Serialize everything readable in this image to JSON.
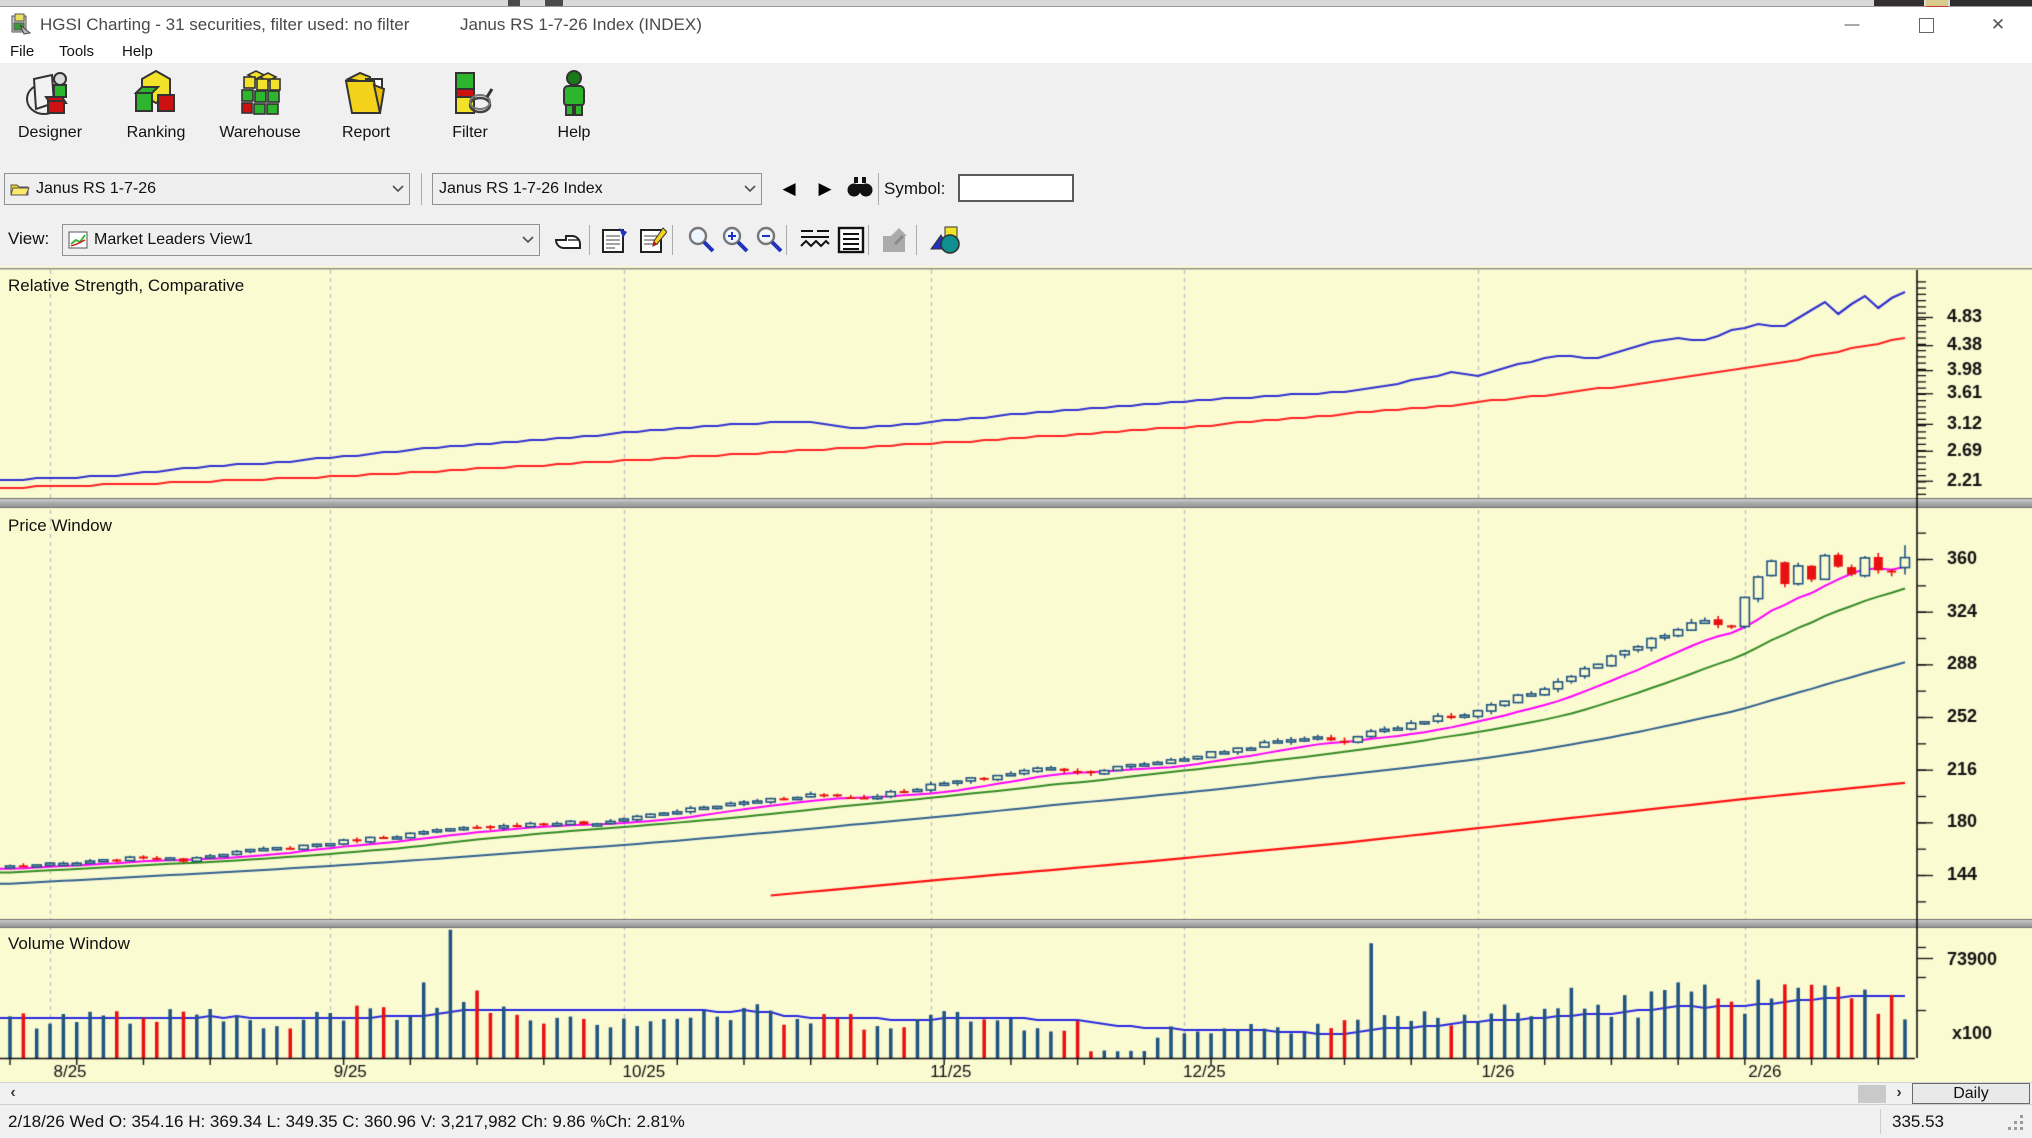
{
  "window": {
    "app_title": "HGSI Charting - 31 securities, filter used: no filter",
    "doc_title": "Janus RS 1-7-26 Index (INDEX)"
  },
  "menu": {
    "file": "File",
    "tools": "Tools",
    "help": "Help"
  },
  "toolbar": {
    "designer": "Designer",
    "ranking": "Ranking",
    "warehouse": "Warehouse",
    "report": "Report",
    "filter": "Filter",
    "help": "Help"
  },
  "symbol_row": {
    "list_name": "Janus RS 1-7-26",
    "security_name": "Janus RS 1-7-26 Index",
    "symbol_label": "Symbol:",
    "symbol_value": ""
  },
  "view_row": {
    "label": "View:",
    "view_name": "Market Leaders View1"
  },
  "panes": {
    "rs_title": "Relative Strength, Comparative",
    "price_title": "Price Window",
    "volume_title": "Volume Window"
  },
  "scroll": {
    "period": "Daily"
  },
  "status": {
    "summary": "2/18/26 Wed O: 354.16 H: 369.34 L: 349.35 C: 360.96 V: 3,217,982 Ch: 9.86 %Ch: 2.81%",
    "right_value": "335.53"
  },
  "chart_data": {
    "type": [
      "line",
      "candlestick",
      "bar"
    ],
    "x_axis": {
      "days": 143,
      "month_labels": [
        "8/25",
        "9/25",
        "10/25",
        "11/25",
        "12/25",
        "1/26",
        "2/26"
      ],
      "month_start_days": [
        3,
        24,
        46,
        69,
        88,
        110,
        130
      ]
    },
    "colors": {
      "background": "#FBFBD2",
      "grid": "#C4C4C4",
      "up": "#1F5380",
      "down": "#E81010",
      "ma_fast": "#FF00FF",
      "ma_mid": "#348B24",
      "ma_slow": "#31618E",
      "ma_long": "#FF1010",
      "rs_blue": "#3030D0",
      "rs_red": "#FF2020",
      "vol_ma": "#2828E0"
    },
    "rs_pane": {
      "title": "Relative Strength, Comparative",
      "y_axis_labels": [
        4.83,
        4.38,
        3.98,
        3.61,
        3.12,
        2.69,
        2.21
      ],
      "blue_anchors": [
        [
          0,
          2.22
        ],
        [
          8,
          2.3
        ],
        [
          14,
          2.42
        ],
        [
          21,
          2.52
        ],
        [
          28,
          2.66
        ],
        [
          34,
          2.78
        ],
        [
          40,
          2.86
        ],
        [
          46,
          2.98
        ],
        [
          52,
          3.08
        ],
        [
          57,
          3.14
        ],
        [
          60,
          3.15
        ],
        [
          63,
          3.06
        ],
        [
          66,
          3.08
        ],
        [
          70,
          3.18
        ],
        [
          76,
          3.28
        ],
        [
          82,
          3.38
        ],
        [
          88,
          3.48
        ],
        [
          94,
          3.56
        ],
        [
          99,
          3.62
        ],
        [
          103,
          3.72
        ],
        [
          106,
          3.85
        ],
        [
          108,
          3.95
        ],
        [
          110,
          3.9
        ],
        [
          113,
          4.08
        ],
        [
          116,
          4.2
        ],
        [
          119,
          4.18
        ],
        [
          122,
          4.38
        ],
        [
          125,
          4.5
        ],
        [
          127,
          4.45
        ],
        [
          129,
          4.62
        ],
        [
          131,
          4.72
        ],
        [
          133,
          4.68
        ],
        [
          135,
          4.95
        ],
        [
          136,
          5.08
        ],
        [
          137,
          4.88
        ],
        [
          138,
          5.05
        ],
        [
          139,
          5.18
        ],
        [
          140,
          4.98
        ],
        [
          141,
          5.12
        ],
        [
          142,
          5.22
        ]
      ],
      "red_anchors": [
        [
          0,
          2.1
        ],
        [
          10,
          2.16
        ],
        [
          20,
          2.24
        ],
        [
          30,
          2.34
        ],
        [
          40,
          2.46
        ],
        [
          50,
          2.58
        ],
        [
          60,
          2.7
        ],
        [
          70,
          2.82
        ],
        [
          80,
          2.95
        ],
        [
          90,
          3.1
        ],
        [
          100,
          3.28
        ],
        [
          108,
          3.42
        ],
        [
          115,
          3.58
        ],
        [
          122,
          3.76
        ],
        [
          128,
          3.95
        ],
        [
          134,
          4.15
        ],
        [
          138,
          4.32
        ],
        [
          142,
          4.5
        ]
      ]
    },
    "price_pane": {
      "title": "Price Window",
      "y_axis_labels": [
        360,
        324,
        288,
        252,
        216,
        180,
        144
      ],
      "close_anchors": [
        [
          0,
          150
        ],
        [
          5,
          152
        ],
        [
          10,
          156
        ],
        [
          13,
          154
        ],
        [
          15,
          158
        ],
        [
          21,
          163
        ],
        [
          26,
          168
        ],
        [
          32,
          174
        ],
        [
          37,
          178
        ],
        [
          42,
          180
        ],
        [
          44,
          178
        ],
        [
          46,
          183
        ],
        [
          52,
          190
        ],
        [
          57,
          196
        ],
        [
          60,
          199
        ],
        [
          64,
          197
        ],
        [
          69,
          205
        ],
        [
          74,
          212
        ],
        [
          78,
          218
        ],
        [
          80,
          214
        ],
        [
          82,
          216
        ],
        [
          88,
          224
        ],
        [
          93,
          232
        ],
        [
          97,
          238
        ],
        [
          100,
          236
        ],
        [
          103,
          244
        ],
        [
          106,
          250
        ],
        [
          109,
          253
        ],
        [
          112,
          262
        ],
        [
          115,
          272
        ],
        [
          118,
          284
        ],
        [
          121,
          296
        ],
        [
          124,
          308
        ],
        [
          127,
          318
        ],
        [
          129,
          313
        ],
        [
          130,
          332
        ],
        [
          132,
          360
        ],
        [
          133,
          344
        ],
        [
          134,
          356
        ],
        [
          135,
          348
        ],
        [
          136,
          364
        ],
        [
          137,
          354
        ],
        [
          138,
          348
        ],
        [
          139,
          362
        ],
        [
          140,
          352
        ],
        [
          141,
          351.1
        ],
        [
          142,
          360.96
        ]
      ],
      "ma_long_anchors": [
        [
          57,
          130
        ],
        [
          70,
          141
        ],
        [
          85,
          153
        ],
        [
          100,
          166
        ],
        [
          115,
          181
        ],
        [
          130,
          196
        ],
        [
          142,
          207
        ]
      ],
      "last_candle": {
        "date": "2/18/26",
        "open": 354.16,
        "high": 369.34,
        "low": 349.35,
        "close": 360.96,
        "volume": "3,217,982",
        "change": 9.86,
        "pct_change": "2.81%"
      }
    },
    "volume_pane": {
      "title": "Volume Window",
      "y_axis_label": 73900,
      "multiplier": "x100",
      "base_anchors": [
        [
          0,
          30000
        ],
        [
          20,
          29000
        ],
        [
          30,
          33000
        ],
        [
          36,
          38000
        ],
        [
          45,
          29000
        ],
        [
          55,
          33000
        ],
        [
          60,
          27000
        ],
        [
          70,
          30000
        ],
        [
          78,
          26000
        ],
        [
          80,
          24000
        ],
        [
          81,
          5000
        ],
        [
          83,
          4500
        ],
        [
          85,
          6000
        ],
        [
          86,
          20000
        ],
        [
          95,
          24000
        ],
        [
          101,
          28000
        ],
        [
          108,
          30000
        ],
        [
          115,
          34000
        ],
        [
          120,
          38000
        ],
        [
          126,
          44000
        ],
        [
          133,
          46000
        ],
        [
          138,
          42000
        ],
        [
          142,
          36000
        ]
      ],
      "spikes": {
        "31": 56000,
        "33": 95000,
        "35": 50000,
        "102": 85000,
        "117": 52000,
        "125": 56000,
        "131": 58000,
        "134": 52000
      }
    }
  }
}
